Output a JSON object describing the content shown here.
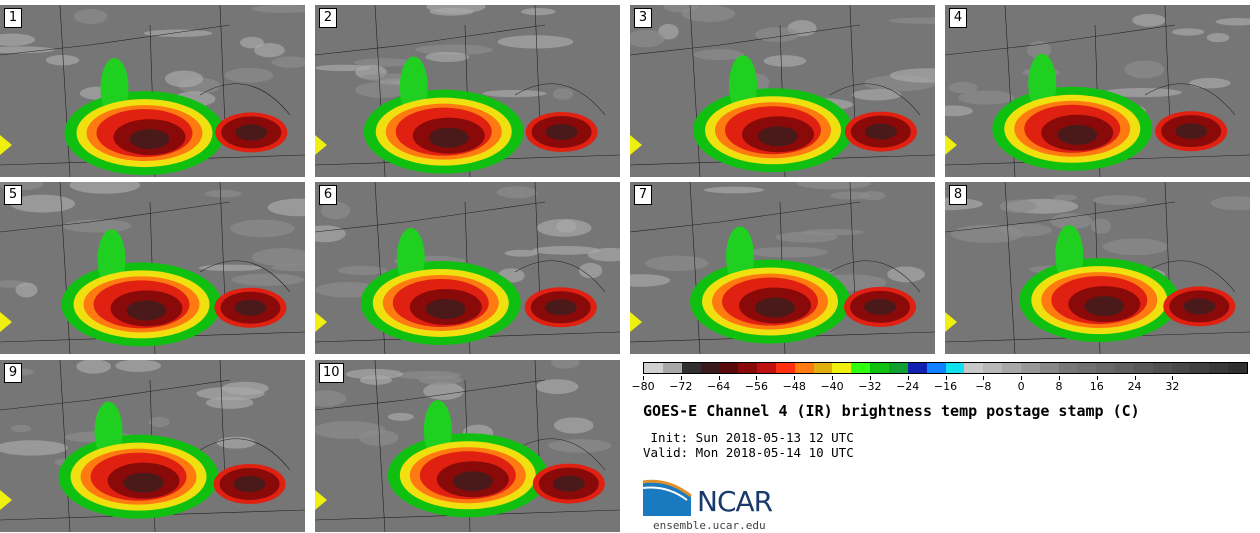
{
  "panels": [
    {
      "label": "1"
    },
    {
      "label": "2"
    },
    {
      "label": "3"
    },
    {
      "label": "4"
    },
    {
      "label": "5"
    },
    {
      "label": "6"
    },
    {
      "label": "7"
    },
    {
      "label": "8"
    },
    {
      "label": "9"
    },
    {
      "label": "10"
    }
  ],
  "colorbar": {
    "colors": [
      "#d0d0d0",
      "#a8a8a8",
      "#303030",
      "#3a1a1a",
      "#5a0a0a",
      "#8a0a0a",
      "#c01010",
      "#ff3010",
      "#ff7a10",
      "#e0b010",
      "#f0f010",
      "#30ff10",
      "#10c010",
      "#10a030",
      "#1020b0",
      "#1080ff",
      "#10e0f0",
      "#c8c8c8",
      "#b8b8b8",
      "#a8a8a8",
      "#989898",
      "#888888",
      "#787878",
      "#707070",
      "#686868",
      "#606060",
      "#585858",
      "#505050",
      "#484848",
      "#404040",
      "#383838",
      "#303030"
    ],
    "ticks": [
      "−80",
      "−72",
      "−64",
      "−56",
      "−48",
      "−40",
      "−32",
      "−24",
      "−16",
      "−8",
      "0",
      "8",
      "16",
      "24",
      "32"
    ]
  },
  "title": "GOES-E Channel 4 (IR) brightness temp postage stamp (C)",
  "init": " Init: Sun 2018-05-13 12 UTC",
  "valid": "Valid: Mon 2018-05-14 10 UTC",
  "logo_text": "NCAR",
  "site": "ensemble.ucar.edu"
}
